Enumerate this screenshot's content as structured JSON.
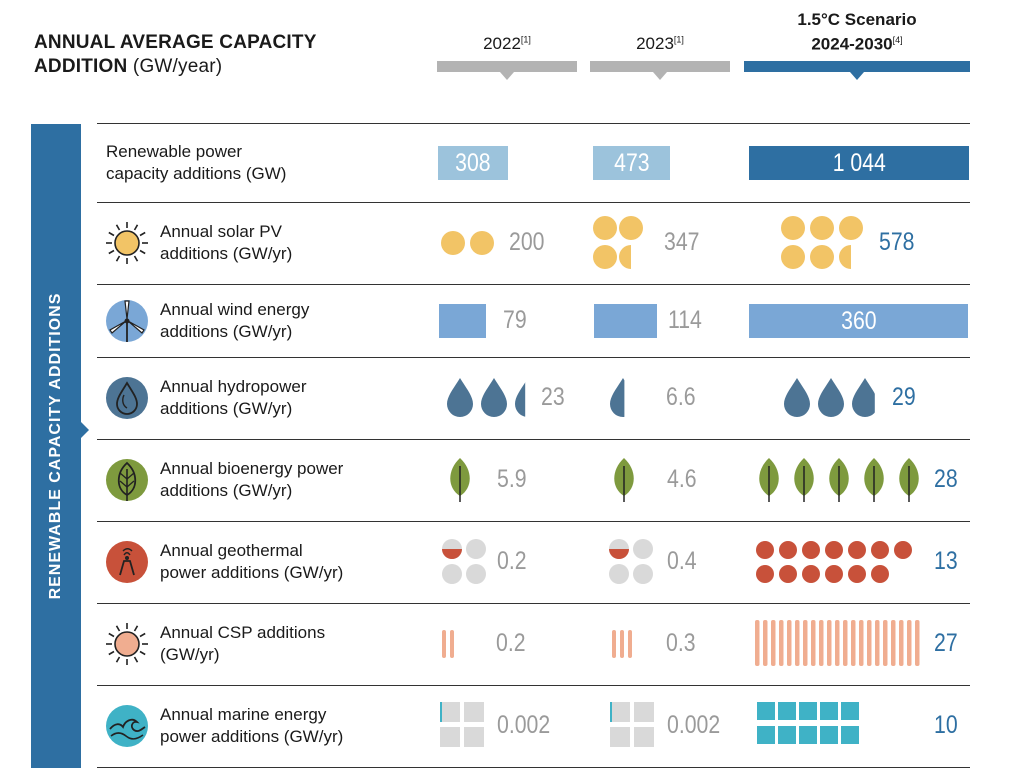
{
  "header": {
    "title_line1": "ANNUAL AVERAGE CAPACITY",
    "title_line2": "ADDITION",
    "title_unit": "(GW/year)"
  },
  "columns": [
    {
      "label": "2022",
      "ref": "[1]"
    },
    {
      "label": "2023",
      "ref": "[1]"
    },
    {
      "label_line1": "1.5°C Scenario",
      "label_line2": "2024-2030",
      "ref": "[4]"
    }
  ],
  "sidebar_label": "RENEWABLE CAPACITY ADDITIONS",
  "colors": {
    "blue": "#2e6fa2",
    "light_blue": "#9cc3dc",
    "wind_blue": "#7aa7d6",
    "solar": "#f2c466",
    "hydro": "#4d7494",
    "bio": "#7e9a3e",
    "geo": "#c8513a",
    "csp": "#f0ad90",
    "marine": "#3fb2c6",
    "grey": "#d9d9d9",
    "header_grey": "#b3b3b3"
  },
  "chart_data": {
    "type": "table",
    "columns": [
      "2022",
      "2023",
      "1.5°C Scenario 2024-2030"
    ],
    "rows": [
      {
        "label_lines": [
          "Renewable power",
          "capacity additions (GW)"
        ],
        "values": [
          "308",
          "473",
          "1 044"
        ],
        "icon": "none"
      },
      {
        "label_lines": [
          "Annual solar PV",
          "additions (GW/yr)"
        ],
        "values": [
          "200",
          "347",
          "578"
        ],
        "icon": "sun-icon"
      },
      {
        "label_lines": [
          "Annual wind energy",
          "additions (GW/yr)"
        ],
        "values": [
          "79",
          "114",
          "360"
        ],
        "icon": "wind-turbine-icon"
      },
      {
        "label_lines": [
          "Annual hydropower",
          "additions (GW/yr)"
        ],
        "values": [
          "23",
          "6.6",
          "29"
        ],
        "icon": "water-drop-icon"
      },
      {
        "label_lines": [
          "Annual bioenergy power",
          "additions (GW/yr)"
        ],
        "values": [
          "5.9",
          "4.6",
          "28"
        ],
        "icon": "leaf-icon"
      },
      {
        "label_lines": [
          "Annual geothermal",
          "power additions (GW/yr)"
        ],
        "values": [
          "0.2",
          "0.4",
          "13"
        ],
        "icon": "geothermal-icon"
      },
      {
        "label_lines": [
          "Annual CSP additions",
          "(GW/yr)"
        ],
        "values": [
          "0.2",
          "0.3",
          "27"
        ],
        "icon": "csp-sun-icon"
      },
      {
        "label_lines": [
          "Annual marine energy",
          "power additions (GW/yr)"
        ],
        "values": [
          "0.002",
          "0.002",
          "10"
        ],
        "icon": "wave-icon"
      }
    ]
  }
}
